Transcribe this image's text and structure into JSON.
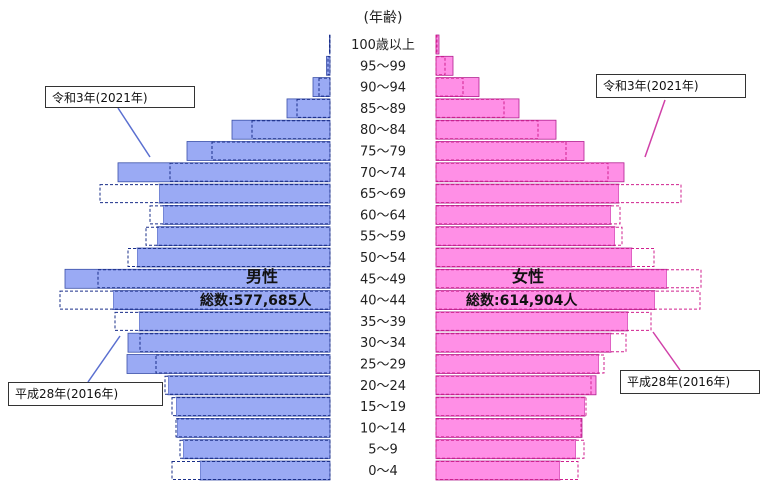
{
  "chart_data": {
    "type": "bar",
    "subtype": "population-pyramid",
    "age_axis_label": "(年齢)",
    "categories": [
      "100歳以上",
      "95～99",
      "90～94",
      "85～89",
      "80～84",
      "75～79",
      "70～74",
      "65～69",
      "60～64",
      "55～59",
      "50～54",
      "45～49",
      "40～44",
      "35～39",
      "30～34",
      "25～29",
      "20～24",
      "15～19",
      "10～14",
      "5～9",
      "0～4"
    ],
    "series": [
      {
        "name": "男性 令和3年(2021年)",
        "sex": "male",
        "year": "令和3年(2021年)",
        "color": "#9aaaf4",
        "border": "#3a4fa8",
        "values": [
          0.5,
          3.5,
          17,
          43,
          98,
          143,
          212,
          171,
          167,
          173,
          193,
          265,
          217,
          191,
          202,
          203,
          162,
          154,
          153,
          147,
          130
        ]
      },
      {
        "name": "男性 平成28年(2016年)",
        "sex": "male",
        "year": "平成28年(2016年)",
        "color": "#1a2f8a",
        "style": "dashed",
        "values": [
          0.5,
          2,
          11,
          33,
          78,
          118,
          160,
          230,
          180,
          184,
          202,
          232,
          270,
          215,
          190,
          174,
          165,
          158,
          154,
          150,
          158
        ]
      },
      {
        "name": "女性 令和3年(2021年)",
        "sex": "female",
        "year": "令和3年(2021年)",
        "color": "#ff8fe6",
        "border": "#b0208f",
        "values": [
          3,
          17,
          43,
          83,
          120,
          148,
          188,
          183,
          175,
          179,
          196,
          231,
          219,
          192,
          175,
          163,
          160,
          149,
          146,
          140,
          124
        ]
      },
      {
        "name": "女性 平成28年(2016年)",
        "sex": "female",
        "year": "平成28年(2016年)",
        "color": "#d0208f",
        "style": "dashed",
        "values": [
          1,
          9,
          27,
          68,
          102,
          130,
          172,
          245,
          184,
          186,
          218,
          265,
          264,
          215,
          190,
          168,
          155,
          150,
          145,
          148,
          142
        ]
      }
    ]
  },
  "labels": {
    "male": "男性",
    "female": "女性",
    "male_total": "総数:577,685人",
    "female_total": "総数:614,904人",
    "callout_2021_left": "令和3年(2021年)",
    "callout_2021_right": "令和3年(2021年)",
    "callout_2016_left": "平成28年(2016年)",
    "callout_2016_right": "平成28年(2016年)"
  }
}
